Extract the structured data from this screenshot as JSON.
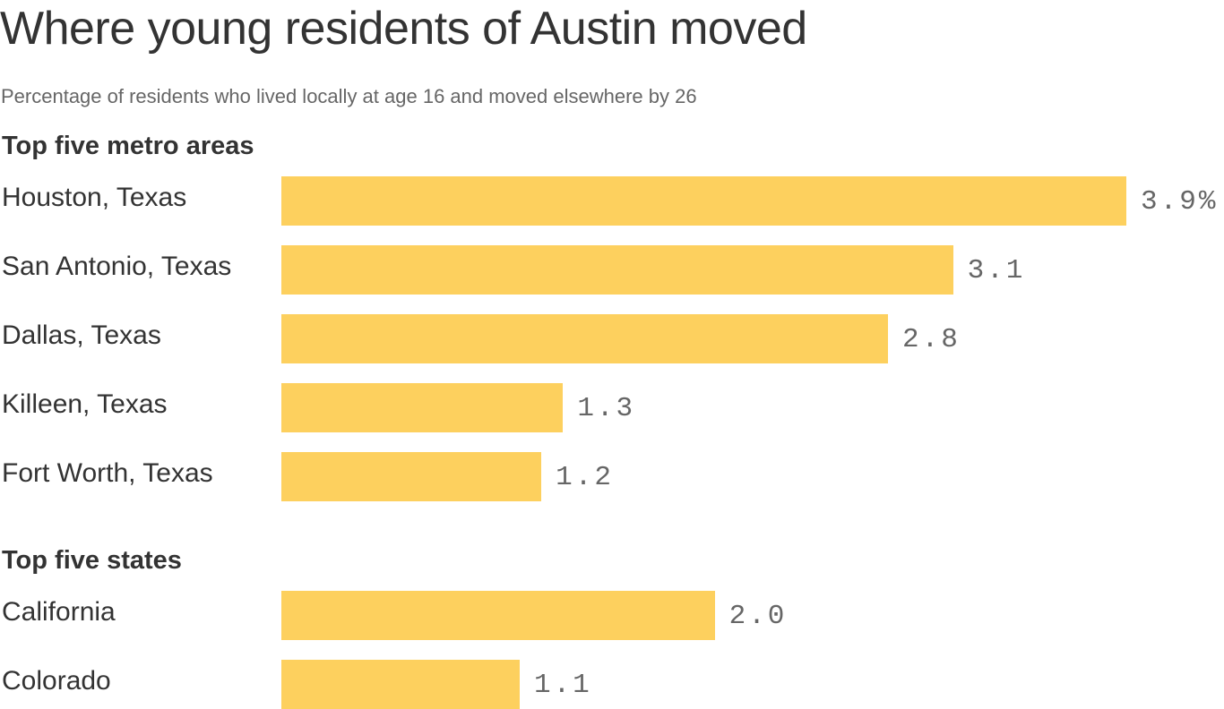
{
  "chart_data": {
    "type": "bar",
    "orientation": "horizontal",
    "title": "Where young residents of Austin moved",
    "subtitle": "Percentage of residents who lived locally at age 16 and moved elsewhere by 26",
    "unit": "%",
    "bar_color": "#fdd05e",
    "groups": [
      {
        "label": "Top five metro areas",
        "categories": [
          "Houston, Texas",
          "San Antonio, Texas",
          "Dallas, Texas",
          "Killeen, Texas",
          "Fort Worth, Texas"
        ],
        "values": [
          3.9,
          3.1,
          2.8,
          1.3,
          1.2
        ],
        "value_labels": [
          "3.9%",
          "3.1",
          "2.8",
          "1.3",
          "1.2"
        ]
      },
      {
        "label": "Top five states",
        "categories": [
          "California",
          "Colorado"
        ],
        "values": [
          2.0,
          1.1
        ],
        "value_labels": [
          "2.0",
          "1.1"
        ]
      }
    ]
  }
}
